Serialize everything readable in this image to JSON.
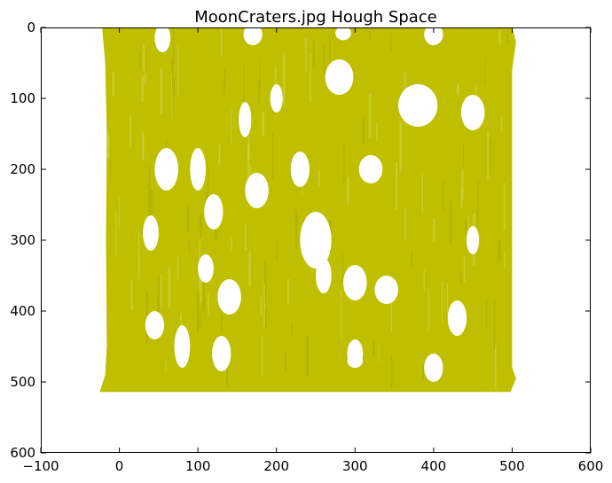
{
  "chart_data": {
    "type": "area",
    "title": "MoonCraters.jpg Hough Space",
    "xlabel": "",
    "ylabel": "",
    "xlim": [
      -100,
      600
    ],
    "ylim": [
      600,
      0
    ],
    "y_inverted": true,
    "x_ticks": [
      -100,
      0,
      100,
      200,
      300,
      400,
      500,
      600
    ],
    "y_ticks": [
      0,
      100,
      200,
      300,
      400,
      500,
      600
    ],
    "grid": false,
    "fill_color": "#bfbf00",
    "background_color": "#ffffff",
    "filled_region": {
      "left_edge": [
        [
          -22,
          0
        ],
        [
          -18,
          50
        ],
        [
          -16,
          150
        ],
        [
          -17,
          300
        ],
        [
          -16,
          450
        ],
        [
          -18,
          490
        ],
        [
          -25,
          514
        ]
      ],
      "right_edge": [
        [
          500,
          0
        ],
        [
          505,
          20
        ],
        [
          500,
          60
        ],
        [
          500,
          250
        ],
        [
          500,
          480
        ],
        [
          505,
          495
        ],
        [
          498,
          514
        ]
      ],
      "top_edge_y": 0,
      "bottom_edge_y": 514
    },
    "holes": [
      {
        "x": 55,
        "y": 15,
        "rx": 10,
        "ry": 20
      },
      {
        "x": 170,
        "y": 10,
        "rx": 12,
        "ry": 15
      },
      {
        "x": 285,
        "y": 8,
        "rx": 10,
        "ry": 10
      },
      {
        "x": 400,
        "y": 10,
        "rx": 12,
        "ry": 15
      },
      {
        "x": 280,
        "y": 70,
        "rx": 18,
        "ry": 25
      },
      {
        "x": 380,
        "y": 110,
        "rx": 25,
        "ry": 30
      },
      {
        "x": 450,
        "y": 120,
        "rx": 15,
        "ry": 25
      },
      {
        "x": 60,
        "y": 200,
        "rx": 15,
        "ry": 30
      },
      {
        "x": 100,
        "y": 200,
        "rx": 10,
        "ry": 30
      },
      {
        "x": 175,
        "y": 230,
        "rx": 15,
        "ry": 25
      },
      {
        "x": 230,
        "y": 200,
        "rx": 12,
        "ry": 25
      },
      {
        "x": 320,
        "y": 200,
        "rx": 15,
        "ry": 20
      },
      {
        "x": 40,
        "y": 290,
        "rx": 10,
        "ry": 25
      },
      {
        "x": 120,
        "y": 260,
        "rx": 12,
        "ry": 25
      },
      {
        "x": 250,
        "y": 300,
        "rx": 20,
        "ry": 40
      },
      {
        "x": 110,
        "y": 340,
        "rx": 10,
        "ry": 20
      },
      {
        "x": 260,
        "y": 350,
        "rx": 10,
        "ry": 25
      },
      {
        "x": 300,
        "y": 360,
        "rx": 15,
        "ry": 25
      },
      {
        "x": 340,
        "y": 370,
        "rx": 15,
        "ry": 20
      },
      {
        "x": 140,
        "y": 380,
        "rx": 15,
        "ry": 25
      },
      {
        "x": 45,
        "y": 420,
        "rx": 12,
        "ry": 20
      },
      {
        "x": 430,
        "y": 410,
        "rx": 12,
        "ry": 25
      },
      {
        "x": 80,
        "y": 450,
        "rx": 10,
        "ry": 30
      },
      {
        "x": 130,
        "y": 460,
        "rx": 12,
        "ry": 25
      },
      {
        "x": 300,
        "y": 460,
        "rx": 10,
        "ry": 20
      },
      {
        "x": 300,
        "y": 470,
        "rx": 10,
        "ry": 10
      },
      {
        "x": 400,
        "y": 480,
        "rx": 12,
        "ry": 20
      },
      {
        "x": 160,
        "y": 130,
        "rx": 8,
        "ry": 25
      },
      {
        "x": 200,
        "y": 100,
        "rx": 8,
        "ry": 20
      },
      {
        "x": 450,
        "y": 300,
        "rx": 8,
        "ry": 20
      }
    ]
  }
}
